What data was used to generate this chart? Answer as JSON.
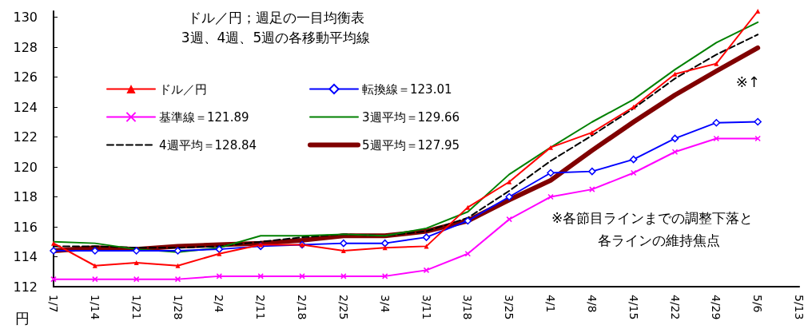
{
  "chart_data": {
    "type": "line",
    "title": "ドル／円；週足の一目均衡表",
    "subtitle": "3週、4週、5週の各移動平均線",
    "ylabel": "円",
    "categories": [
      "1/7",
      "1/14",
      "1/21",
      "1/28",
      "2/4",
      "2/11",
      "2/18",
      "2/25",
      "3/4",
      "3/11",
      "3/18",
      "3/25",
      "4/1",
      "4/8",
      "4/15",
      "4/22",
      "4/29",
      "5/6",
      "5/13"
    ],
    "ylim": [
      112,
      130.4
    ],
    "yticks": [
      112,
      114,
      116,
      118,
      120,
      122,
      124,
      126,
      128,
      130
    ],
    "grid": false,
    "legend": "top",
    "annotations": [
      "※↑",
      "※各節目ラインまでの調整下落と",
      "各ラインの維持焦点"
    ],
    "series": [
      {
        "name": "ドル／円",
        "color": "#ff0000",
        "marker": "triangle",
        "values": [
          114.9,
          113.4,
          113.6,
          113.4,
          114.2,
          114.8,
          114.8,
          114.4,
          114.6,
          114.7,
          117.3,
          119.0,
          121.3,
          122.3,
          124.0,
          126.2,
          126.9,
          130.4,
          null
        ]
      },
      {
        "name": "転換線＝123.01",
        "color": "#0000ff",
        "marker": "diamond",
        "values": [
          114.4,
          114.4,
          114.4,
          114.4,
          114.5,
          114.7,
          114.8,
          114.9,
          114.9,
          115.3,
          116.4,
          118.0,
          119.6,
          119.7,
          120.5,
          121.9,
          122.95,
          123.01,
          null
        ]
      },
      {
        "name": "基準線＝121.89",
        "color": "#ff00ff",
        "marker": "cross",
        "values": [
          112.5,
          112.5,
          112.5,
          112.5,
          112.7,
          112.7,
          112.7,
          112.7,
          112.7,
          113.1,
          114.2,
          116.5,
          118.0,
          118.5,
          119.6,
          121.0,
          121.89,
          121.89,
          null
        ]
      },
      {
        "name": "3週平均＝129.66",
        "color": "#008000",
        "marker": "none",
        "values": [
          115.0,
          114.9,
          114.5,
          114.3,
          114.6,
          115.4,
          115.4,
          115.5,
          115.4,
          115.9,
          117.0,
          119.5,
          121.3,
          123.0,
          124.5,
          126.5,
          128.3,
          129.66,
          null
        ]
      },
      {
        "name": "4週平均＝128.84",
        "color": "#000000",
        "marker": "none",
        "line_style": "dashed",
        "values": [
          114.7,
          114.7,
          114.6,
          114.6,
          114.7,
          115.0,
          115.3,
          115.5,
          115.4,
          115.7,
          116.6,
          118.4,
          120.4,
          122.1,
          123.9,
          125.9,
          127.5,
          128.84,
          null
        ]
      },
      {
        "name": "5週平均＝127.95",
        "color": "#800000",
        "marker": "none",
        "values": [
          114.4,
          114.6,
          114.5,
          114.7,
          114.8,
          114.9,
          115.1,
          115.4,
          115.4,
          115.7,
          116.4,
          117.8,
          119.1,
          121.1,
          123.0,
          124.8,
          126.4,
          127.95,
          null
        ]
      }
    ]
  }
}
